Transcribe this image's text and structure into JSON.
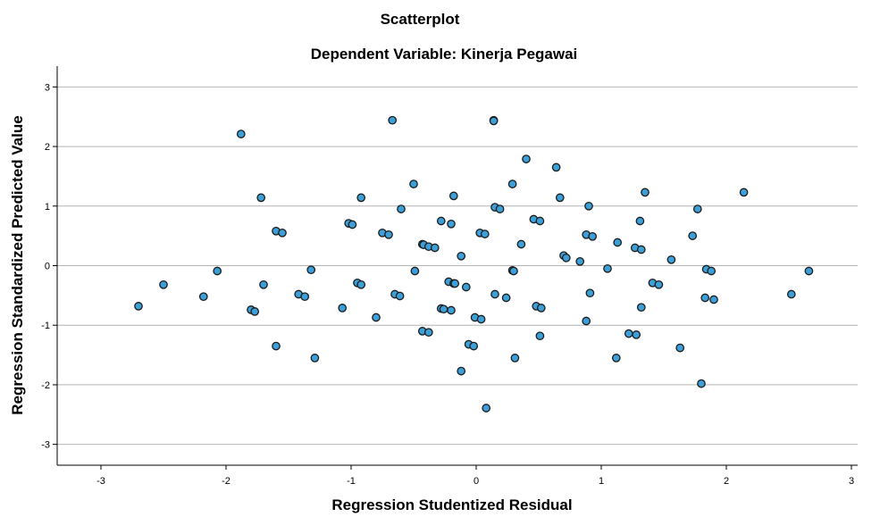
{
  "chart_data": {
    "type": "scatter",
    "title": "Scatterplot",
    "subtitle": "Dependent Variable: Kinerja Pegawai",
    "xlabel": "Regression Studentized Residual",
    "ylabel": "Regression Standardized Predicted Value",
    "xlim": [
      -3.35,
      3.05
    ],
    "ylim": [
      -3.35,
      3.35
    ],
    "xticks": [
      -3,
      -2,
      -1,
      0,
      1,
      2,
      3
    ],
    "yticks": [
      -3,
      -2,
      -1,
      0,
      1,
      2,
      3
    ],
    "grid": "horizontal",
    "legend": "none",
    "colors": {
      "marker_fill": "#3d9fd7",
      "marker_stroke": "#1a1a1a",
      "grid": "#b4b4b4",
      "axis": "#000000"
    },
    "points": [
      {
        "x": -2.7,
        "y": -0.68
      },
      {
        "x": -2.5,
        "y": -0.32
      },
      {
        "x": -2.18,
        "y": -0.52
      },
      {
        "x": -2.07,
        "y": -0.09
      },
      {
        "x": -1.88,
        "y": 2.21
      },
      {
        "x": -1.8,
        "y": -0.74
      },
      {
        "x": -1.77,
        "y": -0.77
      },
      {
        "x": -1.72,
        "y": 1.14
      },
      {
        "x": -1.7,
        "y": -0.32
      },
      {
        "x": -1.6,
        "y": 0.58
      },
      {
        "x": -1.6,
        "y": -1.35
      },
      {
        "x": -1.55,
        "y": 0.55
      },
      {
        "x": -1.42,
        "y": -0.48
      },
      {
        "x": -1.37,
        "y": -0.52
      },
      {
        "x": -1.32,
        "y": -0.07
      },
      {
        "x": -1.29,
        "y": -1.55
      },
      {
        "x": -1.07,
        "y": -0.71
      },
      {
        "x": -1.02,
        "y": 0.71
      },
      {
        "x": -0.99,
        "y": 0.69
      },
      {
        "x": -0.95,
        "y": -0.29
      },
      {
        "x": -0.92,
        "y": 1.14
      },
      {
        "x": -0.92,
        "y": -0.32
      },
      {
        "x": -0.8,
        "y": -0.87
      },
      {
        "x": -0.75,
        "y": 0.55
      },
      {
        "x": -0.7,
        "y": 0.52
      },
      {
        "x": -0.67,
        "y": 2.44
      },
      {
        "x": -0.65,
        "y": -0.48
      },
      {
        "x": -0.61,
        "y": -0.51
      },
      {
        "x": -0.6,
        "y": 0.95
      },
      {
        "x": -0.5,
        "y": 1.37
      },
      {
        "x": -0.49,
        "y": -0.09
      },
      {
        "x": -0.43,
        "y": 0.36
      },
      {
        "x": -0.42,
        "y": 0.35
      },
      {
        "x": -0.43,
        "y": -1.1
      },
      {
        "x": -0.38,
        "y": -1.12
      },
      {
        "x": -0.38,
        "y": 0.32
      },
      {
        "x": -0.33,
        "y": 0.3
      },
      {
        "x": -0.28,
        "y": 0.75
      },
      {
        "x": -0.28,
        "y": -0.72
      },
      {
        "x": -0.26,
        "y": -0.73
      },
      {
        "x": -0.22,
        "y": -0.27
      },
      {
        "x": -0.2,
        "y": -0.75
      },
      {
        "x": -0.2,
        "y": 0.7
      },
      {
        "x": -0.18,
        "y": 1.17
      },
      {
        "x": -0.18,
        "y": -0.3
      },
      {
        "x": -0.17,
        "y": -0.3
      },
      {
        "x": -0.12,
        "y": 0.16
      },
      {
        "x": -0.12,
        "y": -1.77
      },
      {
        "x": -0.08,
        "y": -0.36
      },
      {
        "x": -0.06,
        "y": -1.32
      },
      {
        "x": -0.02,
        "y": -1.35
      },
      {
        "x": -0.01,
        "y": -0.87
      },
      {
        "x": 0.03,
        "y": 0.55
      },
      {
        "x": 0.04,
        "y": -0.9
      },
      {
        "x": 0.07,
        "y": 0.53
      },
      {
        "x": 0.08,
        "y": -2.39
      },
      {
        "x": 0.14,
        "y": 2.44
      },
      {
        "x": 0.14,
        "y": 2.43
      },
      {
        "x": 0.15,
        "y": 0.98
      },
      {
        "x": 0.15,
        "y": -0.48
      },
      {
        "x": 0.19,
        "y": 0.95
      },
      {
        "x": 0.24,
        "y": -0.54
      },
      {
        "x": 0.29,
        "y": 1.37
      },
      {
        "x": 0.29,
        "y": -0.08
      },
      {
        "x": 0.3,
        "y": -0.09
      },
      {
        "x": 0.31,
        "y": -1.55
      },
      {
        "x": 0.36,
        "y": 0.36
      },
      {
        "x": 0.4,
        "y": 1.79
      },
      {
        "x": 0.46,
        "y": 0.78
      },
      {
        "x": 0.48,
        "y": -0.68
      },
      {
        "x": 0.51,
        "y": 0.75
      },
      {
        "x": 0.51,
        "y": -1.18
      },
      {
        "x": 0.52,
        "y": -0.71
      },
      {
        "x": 0.64,
        "y": 1.65
      },
      {
        "x": 0.67,
        "y": 1.14
      },
      {
        "x": 0.7,
        "y": 0.17
      },
      {
        "x": 0.72,
        "y": 0.13
      },
      {
        "x": 0.83,
        "y": 0.07
      },
      {
        "x": 0.88,
        "y": 0.52
      },
      {
        "x": 0.88,
        "y": -0.93
      },
      {
        "x": 0.9,
        "y": 1.0
      },
      {
        "x": 0.91,
        "y": -0.46
      },
      {
        "x": 0.93,
        "y": 0.49
      },
      {
        "x": 1.05,
        "y": -0.05
      },
      {
        "x": 1.12,
        "y": -1.55
      },
      {
        "x": 1.13,
        "y": 0.39
      },
      {
        "x": 1.22,
        "y": -1.14
      },
      {
        "x": 1.27,
        "y": 0.3
      },
      {
        "x": 1.28,
        "y": -1.16
      },
      {
        "x": 1.31,
        "y": 0.75
      },
      {
        "x": 1.32,
        "y": 0.27
      },
      {
        "x": 1.32,
        "y": -0.7
      },
      {
        "x": 1.35,
        "y": 1.23
      },
      {
        "x": 1.41,
        "y": -0.29
      },
      {
        "x": 1.46,
        "y": -0.32
      },
      {
        "x": 1.56,
        "y": 0.1
      },
      {
        "x": 1.63,
        "y": -1.38
      },
      {
        "x": 1.73,
        "y": 0.5
      },
      {
        "x": 1.77,
        "y": 0.95
      },
      {
        "x": 1.8,
        "y": -1.98
      },
      {
        "x": 1.83,
        "y": -0.54
      },
      {
        "x": 1.84,
        "y": -0.06
      },
      {
        "x": 1.88,
        "y": -0.09
      },
      {
        "x": 1.9,
        "y": -0.57
      },
      {
        "x": 2.14,
        "y": 1.23
      },
      {
        "x": 2.52,
        "y": -0.48
      },
      {
        "x": 2.66,
        "y": -0.09
      }
    ]
  }
}
